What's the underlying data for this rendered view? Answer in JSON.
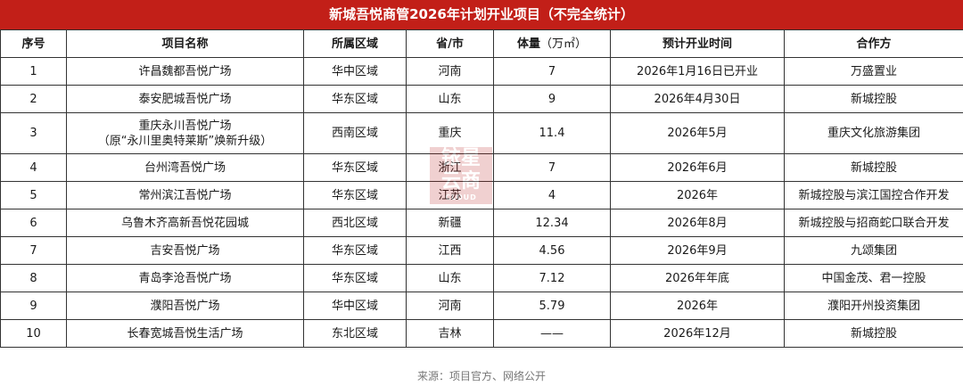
{
  "title": "新城吾悦商管2026年计划开业项目（不完全统计）",
  "headers": {
    "no": "序号",
    "name": "项目名称",
    "region": "所属区域",
    "province": "省/市",
    "area_label": "体量",
    "area_unit": "（万㎡）",
    "date": "预计开业时间",
    "partner": "合作方"
  },
  "rows": [
    {
      "no": "1",
      "name": "许昌魏都吾悦广场",
      "region": "华中区域",
      "province": "河南",
      "area": "7",
      "date": "2026年1月16日已开业",
      "partner": "万盛置业"
    },
    {
      "no": "2",
      "name": "泰安肥城吾悦广场",
      "region": "华东区域",
      "province": "山东",
      "area": "9",
      "date": "2026年4月30日",
      "partner": "新城控股"
    },
    {
      "no": "3",
      "name": "重庆永川吾悦广场",
      "name2": "（原“永川里奥特莱斯”焕新升级）",
      "region": "西南区域",
      "province": "重庆",
      "area": "11.4",
      "date": "2026年5月",
      "partner": "重庆文化旅游集团"
    },
    {
      "no": "4",
      "name": "台州湾吾悦广场",
      "region": "华东区域",
      "province": "浙江",
      "area": "7",
      "date": "2026年6月",
      "partner": "新城控股"
    },
    {
      "no": "5",
      "name": "常州滨江吾悦广场",
      "region": "华东区域",
      "province": "江苏",
      "area": "4",
      "date": "2026年",
      "partner": "新城控股与滨江国控合作开发"
    },
    {
      "no": "6",
      "name": "乌鲁木齐高新吾悦花园城",
      "region": "西北区域",
      "province": "新疆",
      "area": "12.34",
      "date": "2026年8月",
      "partner": "新城控股与招商蛇口联合开发"
    },
    {
      "no": "7",
      "name": "吉安吾悦广场",
      "region": "华东区域",
      "province": "江西",
      "area": "4.56",
      "date": "2026年9月",
      "partner": "九颂集团"
    },
    {
      "no": "8",
      "name": "青岛李沧吾悦广场",
      "region": "华东区域",
      "province": "山东",
      "area": "7.12",
      "date": "2026年年底",
      "partner": "中国金茂、君一控股"
    },
    {
      "no": "9",
      "name": "濮阳吾悦广场",
      "region": "华中区域",
      "province": "河南",
      "area": "5.79",
      "date": "2026年",
      "partner": "濮阳开州投资集团"
    },
    {
      "no": "10",
      "name": "长春宽城吾悦生活广场",
      "region": "东北区域",
      "province": "吉林",
      "area": "——",
      "date": "2026年12月",
      "partner": "新城控股"
    }
  ],
  "source": "来源：项目官方、网络公开",
  "watermark": {
    "line1": "铱星",
    "line2": "云商",
    "line3": "CLOUD"
  }
}
